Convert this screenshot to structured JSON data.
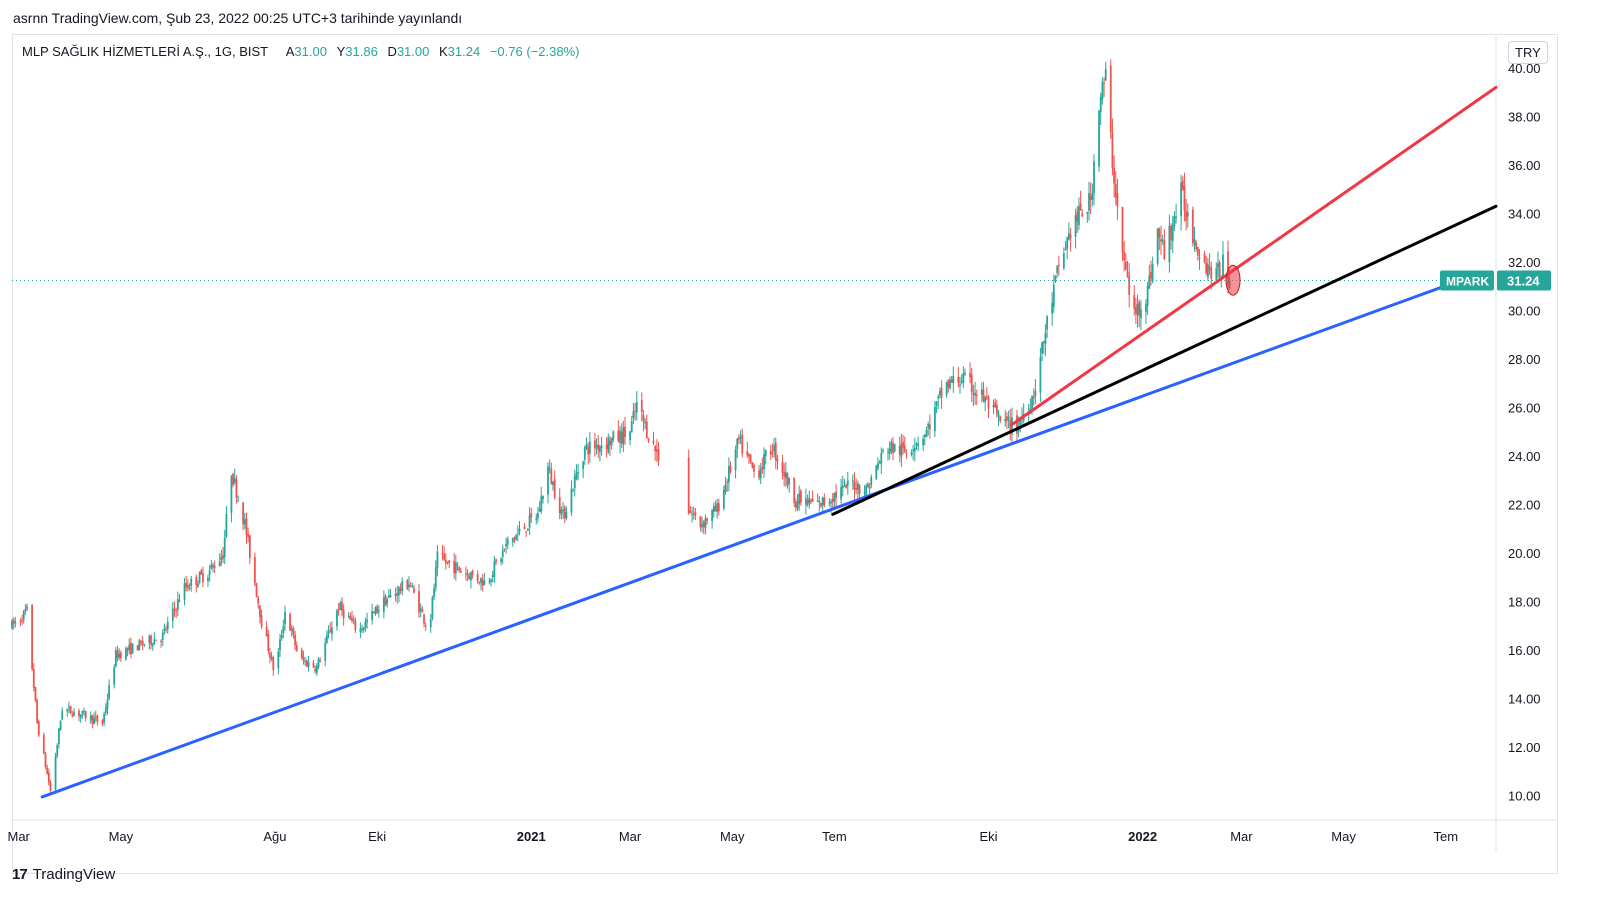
{
  "caption": "asrnn TradingView.com, Şub 23, 2022 00:25 UTC+3 tarihinde yayınlandı",
  "legend": {
    "symbol_text": "MLP SAĞLIK HİZMETLERİ A.Ş., 1G, BIST",
    "open_label": "A",
    "open_value": "31.00",
    "high_label": "Y",
    "high_value": "31.86",
    "low_label": "D",
    "low_value": "31.00",
    "close_label": "K",
    "close_value": "31.24",
    "change_text": "−0.76 (−2.38%)"
  },
  "currency": "TRY",
  "footer": {
    "logo_mark": "17",
    "brand": "TradingView"
  },
  "colors": {
    "up": "#26a69a",
    "down": "#ef5350",
    "blue_trend": "#2962ff",
    "black_trend": "#000000",
    "red_trend": "#f23645",
    "price_tag_bg": "#26a69a"
  },
  "chart_data": {
    "type": "candlestick",
    "y_range": [
      9.0,
      41.4
    ],
    "y_ticks": [
      "10.00",
      "12.00",
      "14.00",
      "16.00",
      "18.00",
      "20.00",
      "22.00",
      "24.00",
      "26.00",
      "28.00",
      "30.00",
      "32.00",
      "34.00",
      "36.00",
      "38.00",
      "40.00"
    ],
    "x_range": [
      "2020-02-26",
      "2022-07-31"
    ],
    "x_ticks": [
      {
        "date": "2020-03-01",
        "label": "Mar",
        "bold": false
      },
      {
        "date": "2020-05-01",
        "label": "May",
        "bold": false
      },
      {
        "date": "2020-08-01",
        "label": "Ağu",
        "bold": false
      },
      {
        "date": "2020-10-01",
        "label": "Eki",
        "bold": false
      },
      {
        "date": "2021-01-01",
        "label": "2021",
        "bold": true
      },
      {
        "date": "2021-03-01",
        "label": "Mar",
        "bold": false
      },
      {
        "date": "2021-05-01",
        "label": "May",
        "bold": false
      },
      {
        "date": "2021-07-01",
        "label": "Tem",
        "bold": false
      },
      {
        "date": "2021-10-01",
        "label": "Eki",
        "bold": false
      },
      {
        "date": "2022-01-01",
        "label": "2022",
        "bold": true
      },
      {
        "date": "2022-03-01",
        "label": "Mar",
        "bold": false
      },
      {
        "date": "2022-05-01",
        "label": "May",
        "bold": false
      },
      {
        "date": "2022-07-01",
        "label": "Tem",
        "bold": false
      }
    ],
    "price_path": [
      [
        "2020-02-26",
        17.0
      ],
      [
        "2020-03-06",
        17.6
      ],
      [
        "2020-03-12",
        13.0
      ],
      [
        "2020-03-20",
        10.2
      ],
      [
        "2020-03-27",
        13.6
      ],
      [
        "2020-04-10",
        13.3
      ],
      [
        "2020-04-20",
        13.0
      ],
      [
        "2020-04-28",
        15.8
      ],
      [
        "2020-05-12",
        16.2
      ],
      [
        "2020-05-26",
        16.6
      ],
      [
        "2020-06-08",
        18.6
      ],
      [
        "2020-06-22",
        19.2
      ],
      [
        "2020-07-01",
        20.0
      ],
      [
        "2020-07-06",
        23.4
      ],
      [
        "2020-07-14",
        21.2
      ],
      [
        "2020-07-24",
        17.2
      ],
      [
        "2020-08-01",
        15.0
      ],
      [
        "2020-08-07",
        17.6
      ],
      [
        "2020-08-16",
        15.6
      ],
      [
        "2020-08-26",
        15.3
      ],
      [
        "2020-09-08",
        17.8
      ],
      [
        "2020-09-20",
        16.8
      ],
      [
        "2020-10-05",
        18.0
      ],
      [
        "2020-10-20",
        18.8
      ],
      [
        "2020-11-01",
        16.8
      ],
      [
        "2020-11-06",
        19.8
      ],
      [
        "2020-11-20",
        19.3
      ],
      [
        "2020-12-05",
        18.8
      ],
      [
        "2020-12-18",
        20.4
      ],
      [
        "2021-01-05",
        21.6
      ],
      [
        "2021-01-11",
        23.5
      ],
      [
        "2021-01-20",
        21.5
      ],
      [
        "2021-02-02",
        24.3
      ],
      [
        "2021-02-16",
        24.6
      ],
      [
        "2021-03-01",
        25.0
      ],
      [
        "2021-03-05",
        26.1
      ],
      [
        "2021-03-15",
        24.4
      ],
      [
        "2021-04-05",
        21.8
      ],
      [
        "2021-04-12",
        21.2
      ],
      [
        "2021-04-22",
        21.8
      ],
      [
        "2021-05-05",
        24.6
      ],
      [
        "2021-05-15",
        23.2
      ],
      [
        "2021-05-25",
        24.4
      ],
      [
        "2021-06-08",
        22.2
      ],
      [
        "2021-06-22",
        22.0
      ],
      [
        "2021-07-01",
        22.4
      ],
      [
        "2021-07-12",
        22.9
      ],
      [
        "2021-07-20",
        22.6
      ],
      [
        "2021-08-01",
        24.4
      ],
      [
        "2021-08-12",
        24.2
      ],
      [
        "2021-08-25",
        25.0
      ],
      [
        "2021-09-05",
        26.9
      ],
      [
        "2021-09-15",
        27.2
      ],
      [
        "2021-09-28",
        26.4
      ],
      [
        "2021-10-08",
        25.4
      ],
      [
        "2021-10-18",
        25.2
      ],
      [
        "2021-10-28",
        26.6
      ],
      [
        "2021-11-05",
        29.5
      ],
      [
        "2021-11-12",
        31.8
      ],
      [
        "2021-11-20",
        33.5
      ],
      [
        "2021-12-01",
        34.5
      ],
      [
        "2021-12-06",
        38.6
      ],
      [
        "2021-12-10",
        39.6
      ],
      [
        "2021-12-14",
        36.2
      ],
      [
        "2021-12-20",
        32.3
      ],
      [
        "2021-12-27",
        29.8
      ],
      [
        "2022-01-04",
        30.8
      ],
      [
        "2022-01-10",
        33.2
      ],
      [
        "2022-01-14",
        32.4
      ],
      [
        "2022-01-24",
        34.8
      ],
      [
        "2022-01-31",
        33.2
      ],
      [
        "2022-02-07",
        32.0
      ],
      [
        "2022-02-14",
        31.4
      ],
      [
        "2022-02-18",
        31.9
      ],
      [
        "2022-02-22",
        31.24
      ]
    ],
    "price_gap": [
      "2021-03-18",
      "2021-04-04"
    ],
    "last_price": 31.24,
    "last_price_label": "31.24",
    "symbol_tag": "MPARK",
    "trend_lines": [
      {
        "name": "blue",
        "color": "#2962ff",
        "from": [
          "2020-03-15",
          9.95
        ],
        "to": [
          "2022-06-30",
          31.0
        ]
      },
      {
        "name": "black",
        "color": "#000000",
        "from": [
          "2021-06-30",
          21.6
        ],
        "to": [
          "2022-07-31",
          34.3
        ]
      },
      {
        "name": "red",
        "color": "#f23645",
        "from": [
          "2021-10-15",
          25.3
        ],
        "to": [
          "2022-07-31",
          39.2
        ]
      }
    ],
    "marker": {
      "date": "2022-02-24",
      "value": 31.25
    },
    "grid": false
  }
}
